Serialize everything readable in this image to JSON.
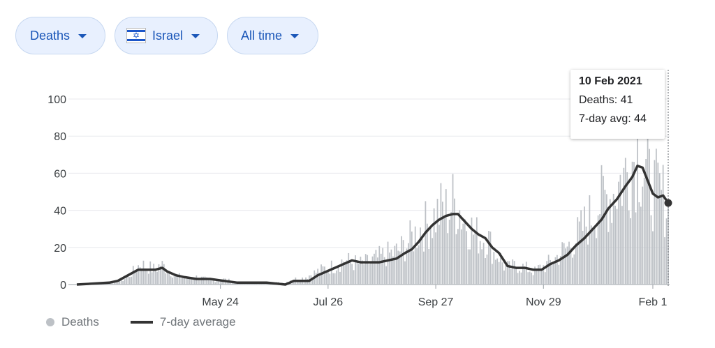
{
  "filters": {
    "metric": "Deaths",
    "region": "Israel",
    "range": "All time"
  },
  "tooltip": {
    "date": "10 Feb 2021",
    "deaths": "Deaths: 41",
    "avg": "7-day avg: 44"
  },
  "legend": {
    "bars": "Deaths",
    "line": "7-day average"
  },
  "colors": {
    "bars": "#bdc1c6",
    "line": "#333333",
    "chip_bg": "#e8f0fe",
    "chip_text": "#1a56b8"
  },
  "chart_data": {
    "type": "bar",
    "title": "",
    "xlabel": "",
    "ylabel": "",
    "ylim": [
      0,
      100
    ],
    "yticks": [
      0,
      20,
      40,
      60,
      80,
      100
    ],
    "x_start": "2020-03-01",
    "x_end": "2021-02-10",
    "xticks": [
      {
        "date": "2020-05-24",
        "label": "May 24"
      },
      {
        "date": "2020-07-26",
        "label": "Jul 26"
      },
      {
        "date": "2020-09-27",
        "label": "Sep 27"
      },
      {
        "date": "2020-11-29",
        "label": "Nov 29"
      },
      {
        "date": "2021-02-01",
        "label": "Feb 1"
      }
    ],
    "grid": true,
    "legend": "bottom-left",
    "series": [
      {
        "name": "Deaths",
        "type": "bar",
        "daily_points": [
          [
            "2020-03-01",
            0
          ],
          [
            "2020-03-20",
            1
          ],
          [
            "2020-03-27",
            2
          ],
          [
            "2020-04-01",
            5
          ],
          [
            "2020-04-04",
            8
          ],
          [
            "2020-04-07",
            11
          ],
          [
            "2020-04-10",
            10
          ],
          [
            "2020-04-13",
            9
          ],
          [
            "2020-04-16",
            8
          ],
          [
            "2020-04-19",
            11
          ],
          [
            "2020-04-22",
            9
          ],
          [
            "2020-04-25",
            7
          ],
          [
            "2020-04-28",
            5
          ],
          [
            "2020-05-01",
            4
          ],
          [
            "2020-05-05",
            3
          ],
          [
            "2020-05-10",
            4
          ],
          [
            "2020-05-15",
            3
          ],
          [
            "2020-05-20",
            2
          ],
          [
            "2020-05-25",
            3
          ],
          [
            "2020-05-30",
            2
          ],
          [
            "2020-06-05",
            1
          ],
          [
            "2020-06-15",
            1
          ],
          [
            "2020-06-25",
            1
          ],
          [
            "2020-07-01",
            1
          ],
          [
            "2020-07-05",
            3
          ],
          [
            "2020-07-10",
            3
          ],
          [
            "2020-07-15",
            5
          ],
          [
            "2020-07-20",
            7
          ],
          [
            "2020-07-25",
            9
          ],
          [
            "2020-07-30",
            10
          ],
          [
            "2020-08-04",
            13
          ],
          [
            "2020-08-09",
            12
          ],
          [
            "2020-08-14",
            11
          ],
          [
            "2020-08-19",
            12
          ],
          [
            "2020-08-24",
            14
          ],
          [
            "2020-08-29",
            16
          ],
          [
            "2020-09-03",
            17
          ],
          [
            "2020-09-08",
            20
          ],
          [
            "2020-09-13",
            25
          ],
          [
            "2020-09-18",
            30
          ],
          [
            "2020-09-23",
            33
          ],
          [
            "2020-09-28",
            38
          ],
          [
            "2020-10-01",
            41
          ],
          [
            "2020-10-04",
            39
          ],
          [
            "2020-10-07",
            44
          ],
          [
            "2020-10-10",
            43
          ],
          [
            "2020-10-13",
            36
          ],
          [
            "2020-10-16",
            33
          ],
          [
            "2020-10-19",
            28
          ],
          [
            "2020-10-22",
            26
          ],
          [
            "2020-10-25",
            25
          ],
          [
            "2020-10-28",
            24
          ],
          [
            "2020-10-31",
            17
          ],
          [
            "2020-11-03",
            16
          ],
          [
            "2020-11-06",
            10
          ],
          [
            "2020-11-09",
            9
          ],
          [
            "2020-11-12",
            10
          ],
          [
            "2020-11-15",
            10
          ],
          [
            "2020-11-18",
            9
          ],
          [
            "2020-11-21",
            8
          ],
          [
            "2020-11-24",
            7
          ],
          [
            "2020-11-27",
            9
          ],
          [
            "2020-11-30",
            10
          ],
          [
            "2020-12-03",
            12
          ],
          [
            "2020-12-06",
            14
          ],
          [
            "2020-12-09",
            17
          ],
          [
            "2020-12-12",
            19
          ],
          [
            "2020-12-15",
            22
          ],
          [
            "2020-12-18",
            25
          ],
          [
            "2020-12-21",
            29
          ],
          [
            "2020-12-24",
            33
          ],
          [
            "2020-12-27",
            37
          ],
          [
            "2020-12-30",
            42
          ],
          [
            "2021-01-02",
            45
          ],
          [
            "2021-01-05",
            47
          ],
          [
            "2021-01-08",
            48
          ],
          [
            "2021-01-11",
            53
          ],
          [
            "2021-01-14",
            57
          ],
          [
            "2021-01-17",
            61
          ],
          [
            "2021-01-20",
            67
          ],
          [
            "2021-01-23",
            72
          ],
          [
            "2021-01-26",
            64
          ],
          [
            "2021-01-29",
            56
          ],
          [
            "2021-02-01",
            52
          ],
          [
            "2021-02-04",
            50
          ],
          [
            "2021-02-07",
            47
          ],
          [
            "2021-02-10",
            41
          ]
        ]
      },
      {
        "name": "7-day average",
        "type": "line",
        "points": [
          [
            "2020-03-01",
            0
          ],
          [
            "2020-03-20",
            1
          ],
          [
            "2020-03-25",
            2
          ],
          [
            "2020-03-31",
            5
          ],
          [
            "2020-04-06",
            8
          ],
          [
            "2020-04-16",
            8
          ],
          [
            "2020-04-20",
            9
          ],
          [
            "2020-04-23",
            7
          ],
          [
            "2020-04-28",
            5
          ],
          [
            "2020-05-03",
            4
          ],
          [
            "2020-05-10",
            3
          ],
          [
            "2020-05-18",
            3
          ],
          [
            "2020-05-26",
            2
          ],
          [
            "2020-06-03",
            1
          ],
          [
            "2020-06-20",
            1
          ],
          [
            "2020-07-01",
            0
          ],
          [
            "2020-07-06",
            2
          ],
          [
            "2020-07-15",
            2
          ],
          [
            "2020-07-20",
            5
          ],
          [
            "2020-07-30",
            9
          ],
          [
            "2020-08-04",
            11
          ],
          [
            "2020-08-09",
            13
          ],
          [
            "2020-08-14",
            12
          ],
          [
            "2020-08-19",
            12
          ],
          [
            "2020-08-25",
            12
          ],
          [
            "2020-08-30",
            13
          ],
          [
            "2020-09-04",
            14
          ],
          [
            "2020-09-09",
            17
          ],
          [
            "2020-09-13",
            19
          ],
          [
            "2020-09-17",
            23
          ],
          [
            "2020-09-21",
            28
          ],
          [
            "2020-09-25",
            32
          ],
          [
            "2020-09-29",
            35
          ],
          [
            "2020-10-03",
            37
          ],
          [
            "2020-10-07",
            38
          ],
          [
            "2020-10-10",
            38
          ],
          [
            "2020-10-14",
            34
          ],
          [
            "2020-10-18",
            30
          ],
          [
            "2020-10-22",
            27
          ],
          [
            "2020-10-26",
            25
          ],
          [
            "2020-10-30",
            20
          ],
          [
            "2020-11-03",
            17
          ],
          [
            "2020-11-08",
            10
          ],
          [
            "2020-11-13",
            9
          ],
          [
            "2020-11-18",
            9
          ],
          [
            "2020-11-23",
            8
          ],
          [
            "2020-11-28",
            8
          ],
          [
            "2020-12-03",
            11
          ],
          [
            "2020-12-08",
            13
          ],
          [
            "2020-12-13",
            16
          ],
          [
            "2020-12-18",
            21
          ],
          [
            "2020-12-23",
            25
          ],
          [
            "2020-12-28",
            30
          ],
          [
            "2021-01-02",
            35
          ],
          [
            "2021-01-06",
            41
          ],
          [
            "2021-01-11",
            46
          ],
          [
            "2021-01-16",
            53
          ],
          [
            "2021-01-20",
            58
          ],
          [
            "2021-01-23",
            64
          ],
          [
            "2021-01-26",
            63
          ],
          [
            "2021-01-29",
            56
          ],
          [
            "2021-02-01",
            49
          ],
          [
            "2021-02-04",
            47
          ],
          [
            "2021-02-07",
            48
          ],
          [
            "2021-02-10",
            44
          ]
        ]
      }
    ]
  }
}
